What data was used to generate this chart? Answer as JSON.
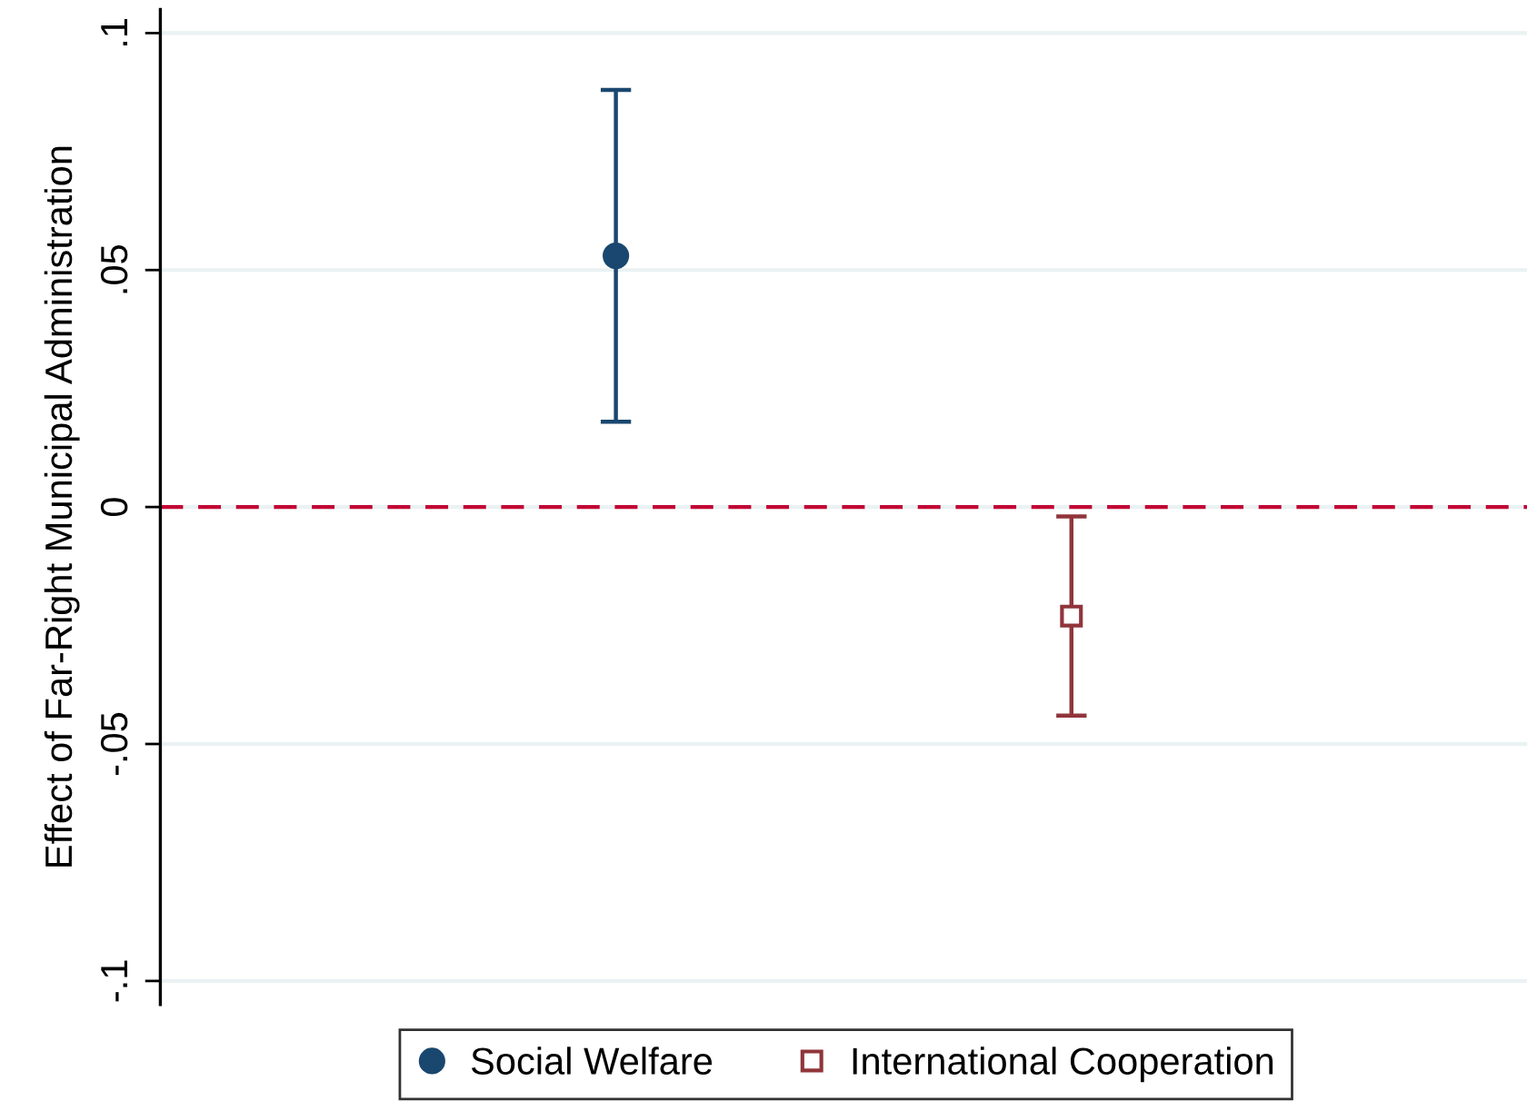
{
  "chart_data": {
    "type": "scatter",
    "ylabel": "Effect of Far-Right Municipal Administration",
    "categories": [
      null,
      null
    ],
    "series": [
      {
        "name": "Social Welfare",
        "color": "#1a476f",
        "marker": "circle",
        "values": [
          0.053,
          null
        ],
        "errors": [
          [
            0.018,
            0.088
          ],
          null
        ]
      },
      {
        "name": "International Cooperation",
        "color": "#90353b",
        "marker": "square",
        "values": [
          null,
          -0.023
        ],
        "errors": [
          null,
          [
            -0.044,
            -0.002
          ]
        ]
      }
    ],
    "ylim": [
      -0.105,
      0.105
    ],
    "yticks": [
      {
        "value": -0.1,
        "label": "-.1"
      },
      {
        "value": -0.05,
        "label": "-.05"
      },
      0,
      {
        "value": 0.05,
        "label": ".05"
      },
      {
        "value": 0.1,
        "label": ".1"
      }
    ],
    "ref_lines": [
      {
        "axis": "y",
        "value": 0,
        "color": "#c10534",
        "line_style": "dashed"
      }
    ],
    "grid": "y",
    "legend": "bottom",
    "tick_labels": "y"
  }
}
